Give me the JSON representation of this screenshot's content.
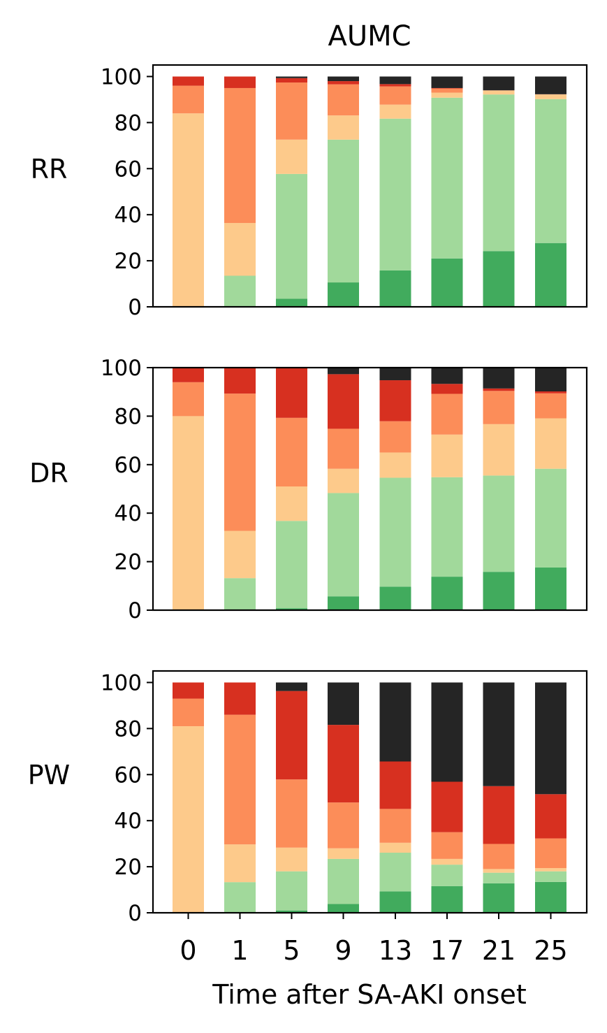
{
  "chart_data": {
    "type": "bar",
    "stacked": true,
    "title": "AUMC",
    "xlabel": "Time after SA-AKI onset",
    "categories": [
      "0",
      "1",
      "5",
      "9",
      "13",
      "17",
      "21",
      "25"
    ],
    "yticks": [
      "0",
      "20",
      "40",
      "60",
      "80",
      "100"
    ],
    "colors": [
      "#41ab5d",
      "#a1d99b",
      "#fdca8b",
      "#fc8d59",
      "#d73020",
      "#252525"
    ],
    "panels": [
      {
        "label": "RR",
        "ylim": [
          0,
          105
        ],
        "segments": [
          [
            0,
            0,
            84,
            12,
            4,
            0
          ],
          [
            0,
            13.5,
            22.9,
            58.6,
            5,
            0
          ],
          [
            3.5,
            54.2,
            14.9,
            24.8,
            1.9,
            0.7
          ],
          [
            10.6,
            62,
            10.5,
            13.5,
            1.4,
            2
          ],
          [
            15.8,
            65.9,
            6.1,
            7.9,
            1,
            3.3
          ],
          [
            21,
            69.8,
            2.2,
            1.8,
            0.2,
            5
          ],
          [
            24.2,
            68,
            1.7,
            0.1,
            0,
            6
          ],
          [
            27.7,
            62.5,
            2,
            0.1,
            0,
            7.7
          ]
        ]
      },
      {
        "label": "DR",
        "ylim": [
          0,
          100
        ],
        "segments": [
          [
            0,
            0,
            80,
            14,
            6,
            0
          ],
          [
            0,
            13.2,
            19.5,
            56.6,
            10.7,
            0
          ],
          [
            0.8,
            36,
            14.2,
            28.3,
            20.7,
            0
          ],
          [
            5.7,
            42.6,
            10,
            16.5,
            22.5,
            2.7
          ],
          [
            9.7,
            44.9,
            10.4,
            12.9,
            16.9,
            5.2
          ],
          [
            13.8,
            41,
            17.6,
            16.8,
            4.1,
            6.7
          ],
          [
            15.8,
            39.7,
            21.2,
            13.7,
            1,
            8.6
          ],
          [
            17.6,
            40.7,
            20.8,
            10.3,
            0.8,
            9.8
          ]
        ]
      },
      {
        "label": "PW",
        "ylim": [
          0,
          105
        ],
        "segments": [
          [
            0,
            0,
            81,
            12,
            7,
            0
          ],
          [
            0,
            13.3,
            16.4,
            56.3,
            14,
            0
          ],
          [
            1,
            17,
            10.3,
            29.6,
            38.4,
            3.7
          ],
          [
            3.8,
            19.6,
            4.6,
            19.9,
            33.7,
            18.4
          ],
          [
            9.3,
            16.8,
            4.3,
            14.7,
            20.6,
            34.3
          ],
          [
            11.6,
            9.3,
            2.5,
            11.6,
            21.9,
            43.1
          ],
          [
            12.8,
            4.6,
            1.6,
            10.9,
            25.1,
            45
          ],
          [
            13.4,
            4.6,
            1.4,
            12.9,
            19.2,
            48.5
          ]
        ]
      }
    ]
  }
}
